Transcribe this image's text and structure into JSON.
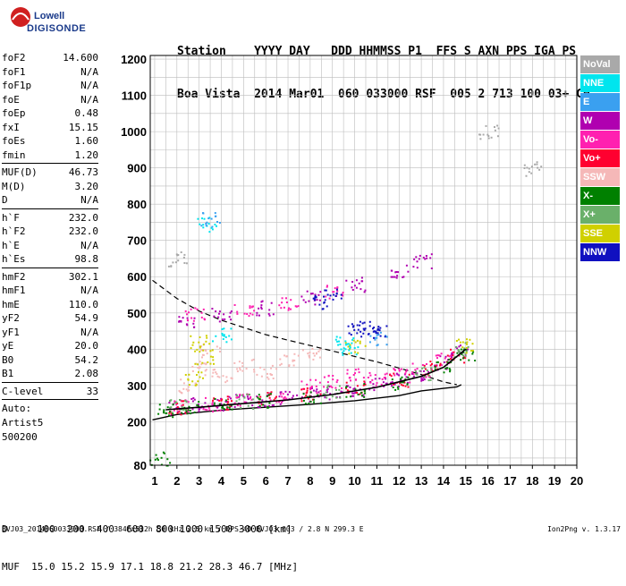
{
  "logo": {
    "line1": "Lowell",
    "line2": "DIGISONDE"
  },
  "header": {
    "line1": "Station    YYYY DAY   DDD HHMMSS P1  FFS S AXN PPS IGA PS",
    "line2": "Boa Vista  2014 Mar01  060 033000 RSF  005 2 713 100 03+ C0"
  },
  "params_group1": [
    {
      "label": "foF2",
      "value": "14.600"
    },
    {
      "label": "foF1",
      "value": "N/A"
    },
    {
      "label": "foF1p",
      "value": "N/A"
    },
    {
      "label": "foE",
      "value": "N/A"
    },
    {
      "label": "foEp",
      "value": "0.48"
    },
    {
      "label": "fxI",
      "value": "15.15"
    },
    {
      "label": "foEs",
      "value": "1.60"
    },
    {
      "label": "fmin",
      "value": "1.20"
    }
  ],
  "params_group2": [
    {
      "label": "MUF(D)",
      "value": "46.73"
    },
    {
      "label": "M(D)",
      "value": "3.20"
    },
    {
      "label": "D",
      "value": "N/A"
    }
  ],
  "params_group3": [
    {
      "label": "h`F",
      "value": "232.0"
    },
    {
      "label": "h`F2",
      "value": "232.0"
    },
    {
      "label": "h`E",
      "value": "N/A"
    },
    {
      "label": "h`Es",
      "value": "98.8"
    }
  ],
  "params_group4": [
    {
      "label": "hmF2",
      "value": "302.1"
    },
    {
      "label": "hmF1",
      "value": "N/A"
    },
    {
      "label": "hmE",
      "value": "110.0"
    },
    {
      "label": "yF2",
      "value": "54.9"
    },
    {
      "label": "yF1",
      "value": "N/A"
    },
    {
      "label": "yE",
      "value": "20.0"
    },
    {
      "label": "B0",
      "value": "54.2"
    },
    {
      "label": "B1",
      "value": "2.08"
    }
  ],
  "params_group5": [
    {
      "label": "C-level",
      "value": "33"
    }
  ],
  "auto": {
    "line1": "Auto:",
    "line2": "Artist5",
    "line3": "500200"
  },
  "legend": [
    {
      "label": "NoVal",
      "color": "#a9a9a9"
    },
    {
      "label": "NNE",
      "color": "#00e5ee"
    },
    {
      "label": "E",
      "color": "#3aa0f0"
    },
    {
      "label": "W",
      "color": "#b000b0"
    },
    {
      "label": "Vo-",
      "color": "#ff20b0"
    },
    {
      "label": "Vo+",
      "color": "#ff0030"
    },
    {
      "label": "SSW",
      "color": "#f5b8b8"
    },
    {
      "label": "X-",
      "color": "#008000"
    },
    {
      "label": "X+",
      "color": "#6ab06a"
    },
    {
      "label": "SSE",
      "color": "#d0d000"
    },
    {
      "label": "NNW",
      "color": "#1010c0"
    }
  ],
  "footer": {
    "line1": "D     100  200  400  600  800 1000 1500 3000 [km]",
    "line2": "MUF  15.0 15.2 15.9 17.1 18.8 21.2 28.3 46.7 [MHz]",
    "file": "BVJ03_2014060033000.RSF / 384fx512h 50 kHz 2.5 km / DPS-4D BVJ03 003 / 2.8 N 299.3 E",
    "version": "Ion2Png v. 1.3.17"
  },
  "chart_data": {
    "type": "scatter",
    "xlabel": "",
    "ylabel": "",
    "xlim": [
      0.8,
      20
    ],
    "ylim": [
      80,
      1210
    ],
    "xticks": [
      1,
      2,
      3,
      4,
      5,
      6,
      7,
      8,
      9,
      10,
      11,
      12,
      13,
      14,
      15,
      16,
      17,
      18,
      19,
      20
    ],
    "yticks": [
      80,
      200,
      300,
      400,
      500,
      600,
      700,
      800,
      900,
      1000,
      1100,
      1200
    ],
    "grid": true,
    "legend_position": "right",
    "series": [
      {
        "name": "W",
        "color": "#b000b0",
        "points": [
          [
            2,
            240
          ],
          [
            3,
            248
          ],
          [
            4,
            252
          ],
          [
            5,
            257
          ],
          [
            6,
            262
          ],
          [
            7,
            268
          ],
          [
            8,
            275
          ],
          [
            9,
            283
          ],
          [
            10,
            292
          ],
          [
            11,
            303
          ],
          [
            12,
            316
          ],
          [
            13,
            335
          ],
          [
            14,
            365
          ],
          [
            14.7,
            395
          ],
          [
            2.5,
            480
          ],
          [
            4,
            495
          ],
          [
            6,
            515
          ],
          [
            8,
            545
          ],
          [
            10,
            580
          ],
          [
            12,
            615
          ],
          [
            13,
            645
          ]
        ]
      },
      {
        "name": "Vo-",
        "color": "#ff20b0",
        "points": [
          [
            2.2,
            245
          ],
          [
            3.5,
            250
          ],
          [
            5,
            260
          ],
          [
            6.5,
            270
          ],
          [
            8,
            300
          ],
          [
            9,
            310
          ],
          [
            10,
            330
          ],
          [
            11,
            320
          ],
          [
            12,
            330
          ],
          [
            13,
            345
          ],
          [
            14,
            375
          ],
          [
            2.8,
            500
          ],
          [
            5,
            510
          ],
          [
            7,
            530
          ],
          [
            9,
            560
          ]
        ]
      },
      {
        "name": "Vo+",
        "color": "#ff0030",
        "points": [
          [
            2,
            242
          ],
          [
            4,
            255
          ],
          [
            6,
            265
          ],
          [
            8,
            278
          ],
          [
            10,
            295
          ],
          [
            12,
            318
          ],
          [
            13.5,
            350
          ],
          [
            14.5,
            385
          ]
        ]
      },
      {
        "name": "X-",
        "color": "#008000",
        "points": [
          [
            1.5,
            230
          ],
          [
            2.5,
            240
          ],
          [
            4,
            250
          ],
          [
            6,
            260
          ],
          [
            8,
            272
          ],
          [
            10,
            288
          ],
          [
            12,
            310
          ],
          [
            14,
            355
          ],
          [
            15,
            390
          ],
          [
            1.2,
            100
          ]
        ]
      },
      {
        "name": "X+",
        "color": "#6ab06a",
        "points": [
          [
            2,
            245
          ],
          [
            5,
            258
          ],
          [
            9,
            285
          ],
          [
            13,
            335
          ],
          [
            14.8,
            400
          ]
        ]
      },
      {
        "name": "SSW",
        "color": "#f5b8b8",
        "points": [
          [
            2.5,
            300
          ],
          [
            3,
            350
          ],
          [
            3.5,
            400
          ],
          [
            4,
            330
          ],
          [
            5,
            360
          ],
          [
            6,
            340
          ],
          [
            7,
            370
          ],
          [
            8,
            390
          ]
        ]
      },
      {
        "name": "SSE",
        "color": "#d0d000",
        "points": [
          [
            3,
            420
          ],
          [
            3.2,
            380
          ],
          [
            2.8,
            320
          ],
          [
            10,
            410
          ],
          [
            15,
            410
          ]
        ]
      },
      {
        "name": "NNE",
        "color": "#00e5ee",
        "points": [
          [
            3.3,
            745
          ],
          [
            9.5,
            420
          ],
          [
            9.8,
            400
          ],
          [
            4,
            440
          ]
        ]
      },
      {
        "name": "E",
        "color": "#3aa0f0",
        "points": [
          [
            3.5,
            760
          ],
          [
            11,
            430
          ]
        ]
      },
      {
        "name": "NNW",
        "color": "#1010c0",
        "points": [
          [
            10,
            455
          ],
          [
            10.5,
            460
          ],
          [
            11,
            450
          ],
          [
            9,
            550
          ],
          [
            8.5,
            530
          ]
        ]
      },
      {
        "name": "NoVal",
        "color": "#a9a9a9",
        "points": [
          [
            2,
            650
          ],
          [
            16,
            1000
          ],
          [
            18,
            900
          ]
        ]
      }
    ],
    "profile": [
      [
        0.9,
        590
      ],
      [
        2,
        540
      ],
      [
        3,
        505
      ],
      [
        4,
        480
      ],
      [
        5,
        460
      ],
      [
        6,
        440
      ],
      [
        7,
        425
      ],
      [
        8,
        410
      ],
      [
        9,
        395
      ],
      [
        10,
        380
      ],
      [
        11,
        365
      ],
      [
        12,
        348
      ],
      [
        13,
        330
      ],
      [
        14,
        310
      ],
      [
        14.6,
        302
      ]
    ],
    "virtual_height": [
      [
        0.9,
        205
      ],
      [
        2,
        220
      ],
      [
        4,
        232
      ],
      [
        6,
        240
      ],
      [
        8,
        248
      ],
      [
        10,
        258
      ],
      [
        12,
        272
      ],
      [
        13,
        285
      ],
      [
        14,
        292
      ],
      [
        14.6,
        296
      ],
      [
        14.8,
        302
      ]
    ],
    "fitted_trace": [
      [
        1.5,
        233
      ],
      [
        3,
        240
      ],
      [
        5,
        250
      ],
      [
        7,
        260
      ],
      [
        9,
        275
      ],
      [
        11,
        295
      ],
      [
        13,
        325
      ],
      [
        14,
        350
      ],
      [
        14.8,
        390
      ],
      [
        15,
        400
      ]
    ]
  }
}
